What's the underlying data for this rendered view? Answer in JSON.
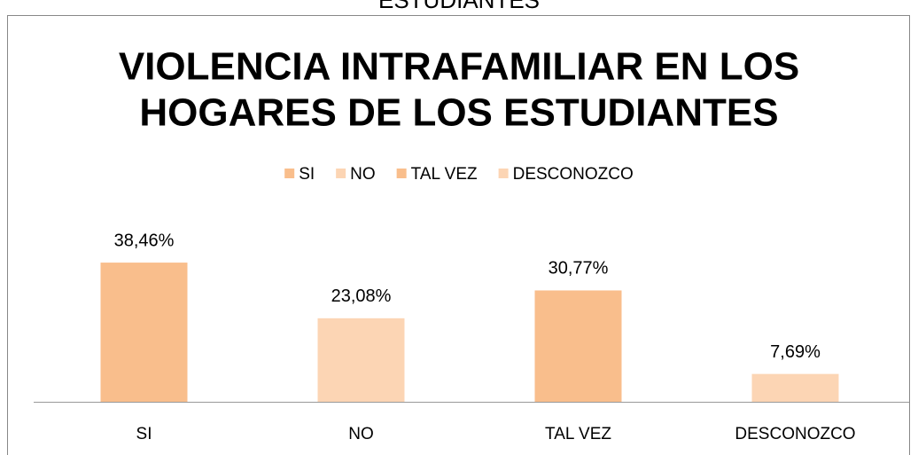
{
  "chart_data": {
    "type": "bar",
    "background_title": "ESTUDIANTES",
    "title": [
      "VIOLENCIA INTRAFAMILIAR EN LOS",
      "HOGARES DE LOS ESTUDIANTES"
    ],
    "categories": [
      "SI",
      "NO",
      "TAL VEZ",
      "DESCONOZCO"
    ],
    "values": [
      38.46,
      23.08,
      30.77,
      7.69
    ],
    "value_labels": [
      "38,46%",
      "23,08%",
      "30,77%",
      "7,69%"
    ],
    "colors": [
      "#f9be8c",
      "#fcd5b4",
      "#f9be8c",
      "#fcd5b4"
    ],
    "legend": "top"
  }
}
